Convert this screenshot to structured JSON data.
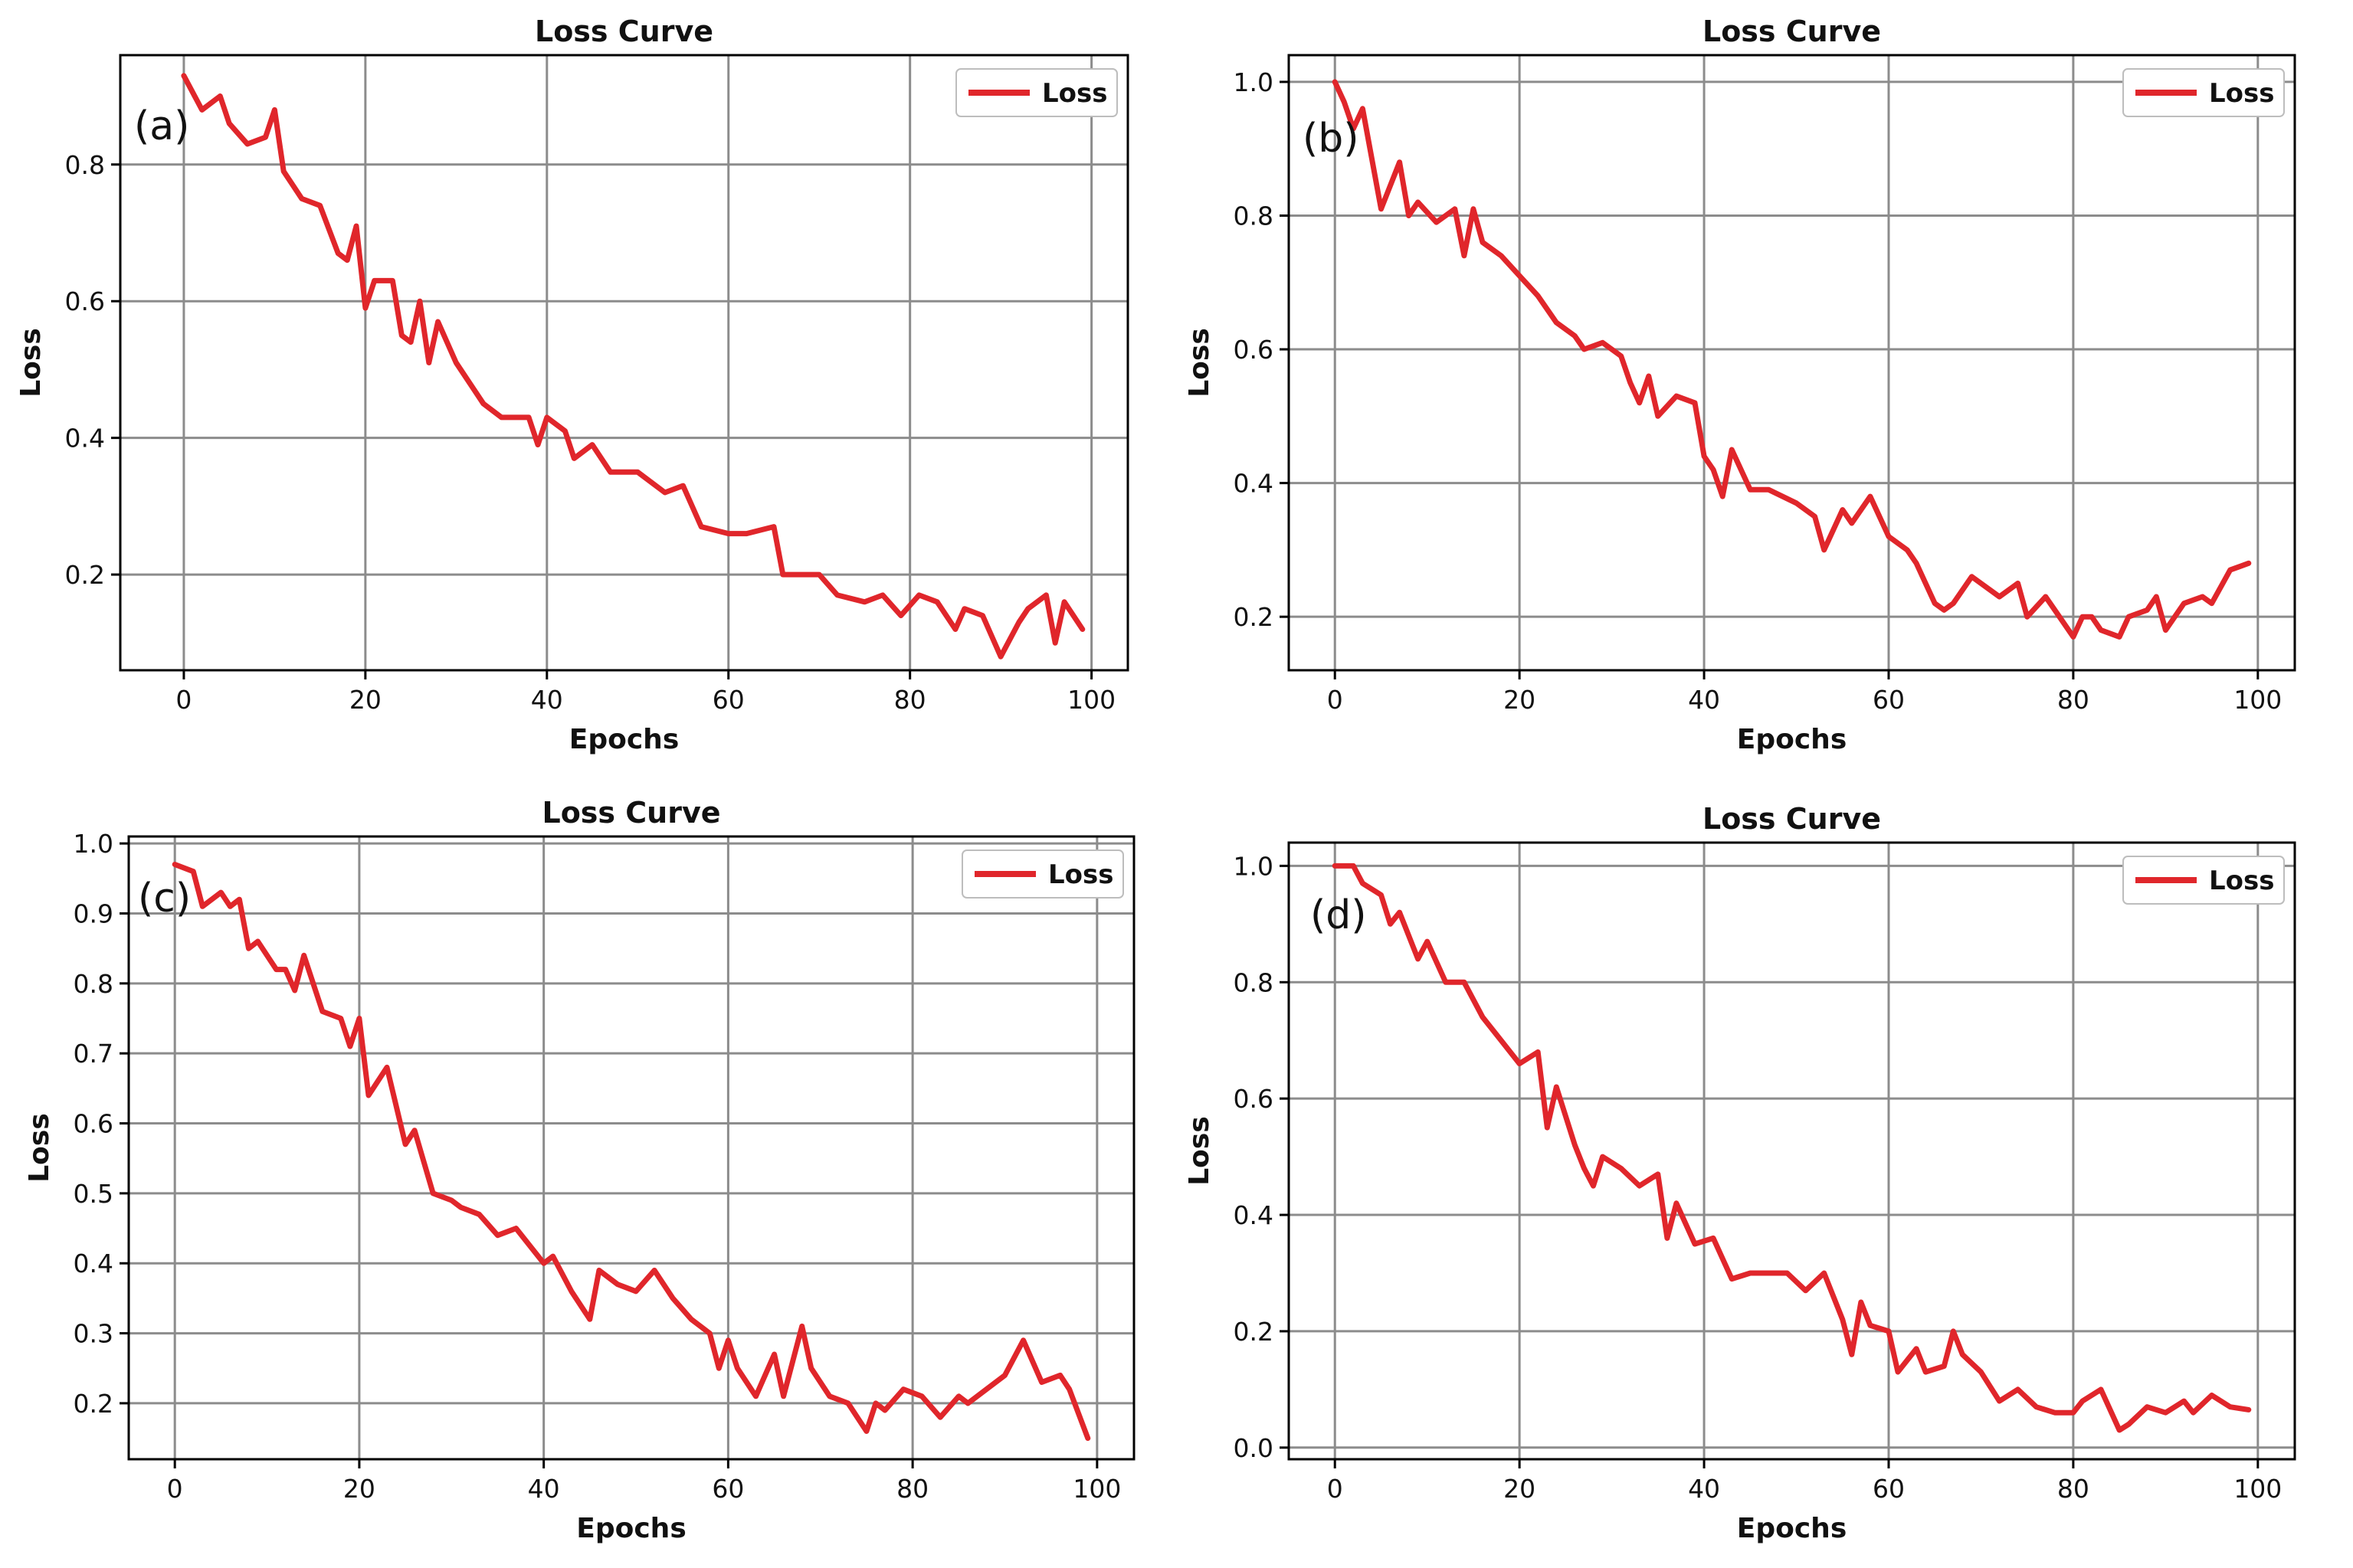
{
  "colors": {
    "line": "#e0262b",
    "grid": "#8c8c8c",
    "axis": "#000000",
    "text": "#111111"
  },
  "chart_data": [
    {
      "panel_label": "(a)",
      "type": "line",
      "title": "Loss Curve",
      "xlabel": "Epochs",
      "ylabel": "Loss",
      "xlim": [
        -7,
        104
      ],
      "ylim": [
        0.06,
        0.96
      ],
      "xticks": [
        0,
        20,
        40,
        60,
        80,
        100
      ],
      "yticks": [
        0.2,
        0.4,
        0.6,
        0.8
      ],
      "ytick_labels": [
        "0.2",
        "0.4",
        "0.6",
        "0.8"
      ],
      "grid": true,
      "legend_position": "top-right",
      "series": [
        {
          "name": "Loss",
          "x": [
            0,
            2,
            4,
            5,
            7,
            9,
            10,
            11,
            13,
            15,
            17,
            18,
            19,
            20,
            21,
            23,
            24,
            25,
            26,
            27,
            28,
            30,
            33,
            35,
            38,
            39,
            40,
            42,
            43,
            45,
            47,
            50,
            53,
            55,
            57,
            60,
            62,
            65,
            66,
            70,
            72,
            75,
            77,
            79,
            81,
            83,
            85,
            86,
            88,
            90,
            92,
            93,
            95,
            96,
            97,
            99
          ],
          "y": [
            0.93,
            0.88,
            0.9,
            0.86,
            0.83,
            0.84,
            0.88,
            0.79,
            0.75,
            0.74,
            0.67,
            0.66,
            0.71,
            0.59,
            0.63,
            0.63,
            0.55,
            0.54,
            0.6,
            0.51,
            0.57,
            0.51,
            0.45,
            0.43,
            0.43,
            0.39,
            0.43,
            0.41,
            0.37,
            0.39,
            0.35,
            0.35,
            0.32,
            0.33,
            0.27,
            0.26,
            0.26,
            0.27,
            0.2,
            0.2,
            0.17,
            0.16,
            0.17,
            0.14,
            0.17,
            0.16,
            0.12,
            0.15,
            0.14,
            0.08,
            0.13,
            0.15,
            0.17,
            0.1,
            0.16,
            0.12
          ]
        }
      ]
    },
    {
      "panel_label": "(b)",
      "type": "line",
      "title": "Loss Curve",
      "xlabel": "Epochs",
      "ylabel": "Loss",
      "xlim": [
        -5,
        104
      ],
      "ylim": [
        0.12,
        1.04
      ],
      "xticks": [
        0,
        20,
        40,
        60,
        80,
        100
      ],
      "yticks": [
        0.2,
        0.4,
        0.6,
        0.8,
        1.0
      ],
      "ytick_labels": [
        "0.2",
        "0.4",
        "0.6",
        "0.8",
        "1.0"
      ],
      "grid": true,
      "legend_position": "top-right",
      "series": [
        {
          "name": "Loss",
          "x": [
            0,
            1,
            2,
            3,
            5,
            7,
            8,
            9,
            11,
            13,
            14,
            15,
            16,
            18,
            20,
            22,
            24,
            26,
            27,
            29,
            31,
            32,
            33,
            34,
            35,
            37,
            39,
            40,
            41,
            42,
            43,
            45,
            47,
            50,
            52,
            53,
            55,
            56,
            58,
            60,
            62,
            63,
            65,
            66,
            67,
            69,
            72,
            74,
            75,
            77,
            78,
            80,
            81,
            82,
            83,
            85,
            86,
            88,
            89,
            90,
            92,
            94,
            95,
            97,
            99
          ],
          "y": [
            1.0,
            0.97,
            0.93,
            0.96,
            0.81,
            0.88,
            0.8,
            0.82,
            0.79,
            0.81,
            0.74,
            0.81,
            0.76,
            0.74,
            0.71,
            0.68,
            0.64,
            0.62,
            0.6,
            0.61,
            0.59,
            0.55,
            0.52,
            0.56,
            0.5,
            0.53,
            0.52,
            0.44,
            0.42,
            0.38,
            0.45,
            0.39,
            0.39,
            0.37,
            0.35,
            0.3,
            0.36,
            0.34,
            0.38,
            0.32,
            0.3,
            0.28,
            0.22,
            0.21,
            0.22,
            0.26,
            0.23,
            0.25,
            0.2,
            0.23,
            0.21,
            0.17,
            0.2,
            0.2,
            0.18,
            0.17,
            0.2,
            0.21,
            0.23,
            0.18,
            0.22,
            0.23,
            0.22,
            0.27,
            0.28
          ]
        }
      ]
    },
    {
      "panel_label": "(c)",
      "type": "line",
      "title": "Loss Curve",
      "xlabel": "Epochs",
      "ylabel": "Loss",
      "xlim": [
        -5,
        104
      ],
      "ylim": [
        0.12,
        1.01
      ],
      "xticks": [
        0,
        20,
        40,
        60,
        80,
        100
      ],
      "yticks": [
        0.2,
        0.3,
        0.4,
        0.5,
        0.6,
        0.7,
        0.8,
        0.9,
        1.0
      ],
      "ytick_labels": [
        "0.2",
        "0.3",
        "0.4",
        "0.5",
        "0.6",
        "0.7",
        "0.8",
        "0.9",
        "1.0"
      ],
      "grid": true,
      "legend_position": "top-right",
      "series": [
        {
          "name": "Loss",
          "x": [
            0,
            2,
            3,
            5,
            6,
            7,
            8,
            9,
            11,
            12,
            13,
            14,
            16,
            18,
            19,
            20,
            21,
            23,
            25,
            26,
            28,
            30,
            31,
            33,
            35,
            37,
            40,
            41,
            43,
            45,
            46,
            48,
            50,
            52,
            54,
            56,
            58,
            59,
            60,
            61,
            63,
            65,
            66,
            68,
            69,
            71,
            73,
            75,
            76,
            77,
            79,
            81,
            83,
            85,
            86,
            88,
            90,
            92,
            94,
            96,
            97,
            99
          ],
          "y": [
            0.97,
            0.96,
            0.91,
            0.93,
            0.91,
            0.92,
            0.85,
            0.86,
            0.82,
            0.82,
            0.79,
            0.84,
            0.76,
            0.75,
            0.71,
            0.75,
            0.64,
            0.68,
            0.57,
            0.59,
            0.5,
            0.49,
            0.48,
            0.47,
            0.44,
            0.45,
            0.4,
            0.41,
            0.36,
            0.32,
            0.39,
            0.37,
            0.36,
            0.39,
            0.35,
            0.32,
            0.3,
            0.25,
            0.29,
            0.25,
            0.21,
            0.27,
            0.21,
            0.31,
            0.25,
            0.21,
            0.2,
            0.16,
            0.2,
            0.19,
            0.22,
            0.21,
            0.18,
            0.21,
            0.2,
            0.22,
            0.24,
            0.29,
            0.23,
            0.24,
            0.22,
            0.15
          ]
        }
      ]
    },
    {
      "panel_label": "(d)",
      "type": "line",
      "title": "Loss Curve",
      "xlabel": "Epochs",
      "ylabel": "Loss",
      "xlim": [
        -5,
        104
      ],
      "ylim": [
        -0.02,
        1.04
      ],
      "xticks": [
        0,
        20,
        40,
        60,
        80,
        100
      ],
      "yticks": [
        0.0,
        0.2,
        0.4,
        0.6,
        0.8,
        1.0
      ],
      "ytick_labels": [
        "0.0",
        "0.2",
        "0.4",
        "0.6",
        "0.8",
        "1.0"
      ],
      "grid": true,
      "legend_position": "top-right",
      "series": [
        {
          "name": "Loss",
          "x": [
            0,
            2,
            3,
            5,
            6,
            7,
            9,
            10,
            12,
            14,
            16,
            18,
            20,
            22,
            23,
            24,
            26,
            27,
            28,
            29,
            31,
            33,
            35,
            36,
            37,
            39,
            41,
            43,
            45,
            47,
            49,
            51,
            53,
            55,
            56,
            57,
            58,
            60,
            61,
            63,
            64,
            66,
            67,
            68,
            70,
            72,
            74,
            76,
            78,
            80,
            81,
            83,
            85,
            86,
            88,
            90,
            92,
            93,
            95,
            97,
            99
          ],
          "y": [
            1.0,
            1.0,
            0.97,
            0.95,
            0.9,
            0.92,
            0.84,
            0.87,
            0.8,
            0.8,
            0.74,
            0.7,
            0.66,
            0.68,
            0.55,
            0.62,
            0.52,
            0.48,
            0.45,
            0.5,
            0.48,
            0.45,
            0.47,
            0.36,
            0.42,
            0.35,
            0.36,
            0.29,
            0.3,
            0.3,
            0.3,
            0.27,
            0.3,
            0.22,
            0.16,
            0.25,
            0.21,
            0.2,
            0.13,
            0.17,
            0.13,
            0.14,
            0.2,
            0.16,
            0.13,
            0.08,
            0.1,
            0.07,
            0.06,
            0.06,
            0.08,
            0.1,
            0.03,
            0.04,
            0.07,
            0.06,
            0.08,
            0.06,
            0.09,
            0.07,
            0.065
          ]
        }
      ]
    }
  ]
}
